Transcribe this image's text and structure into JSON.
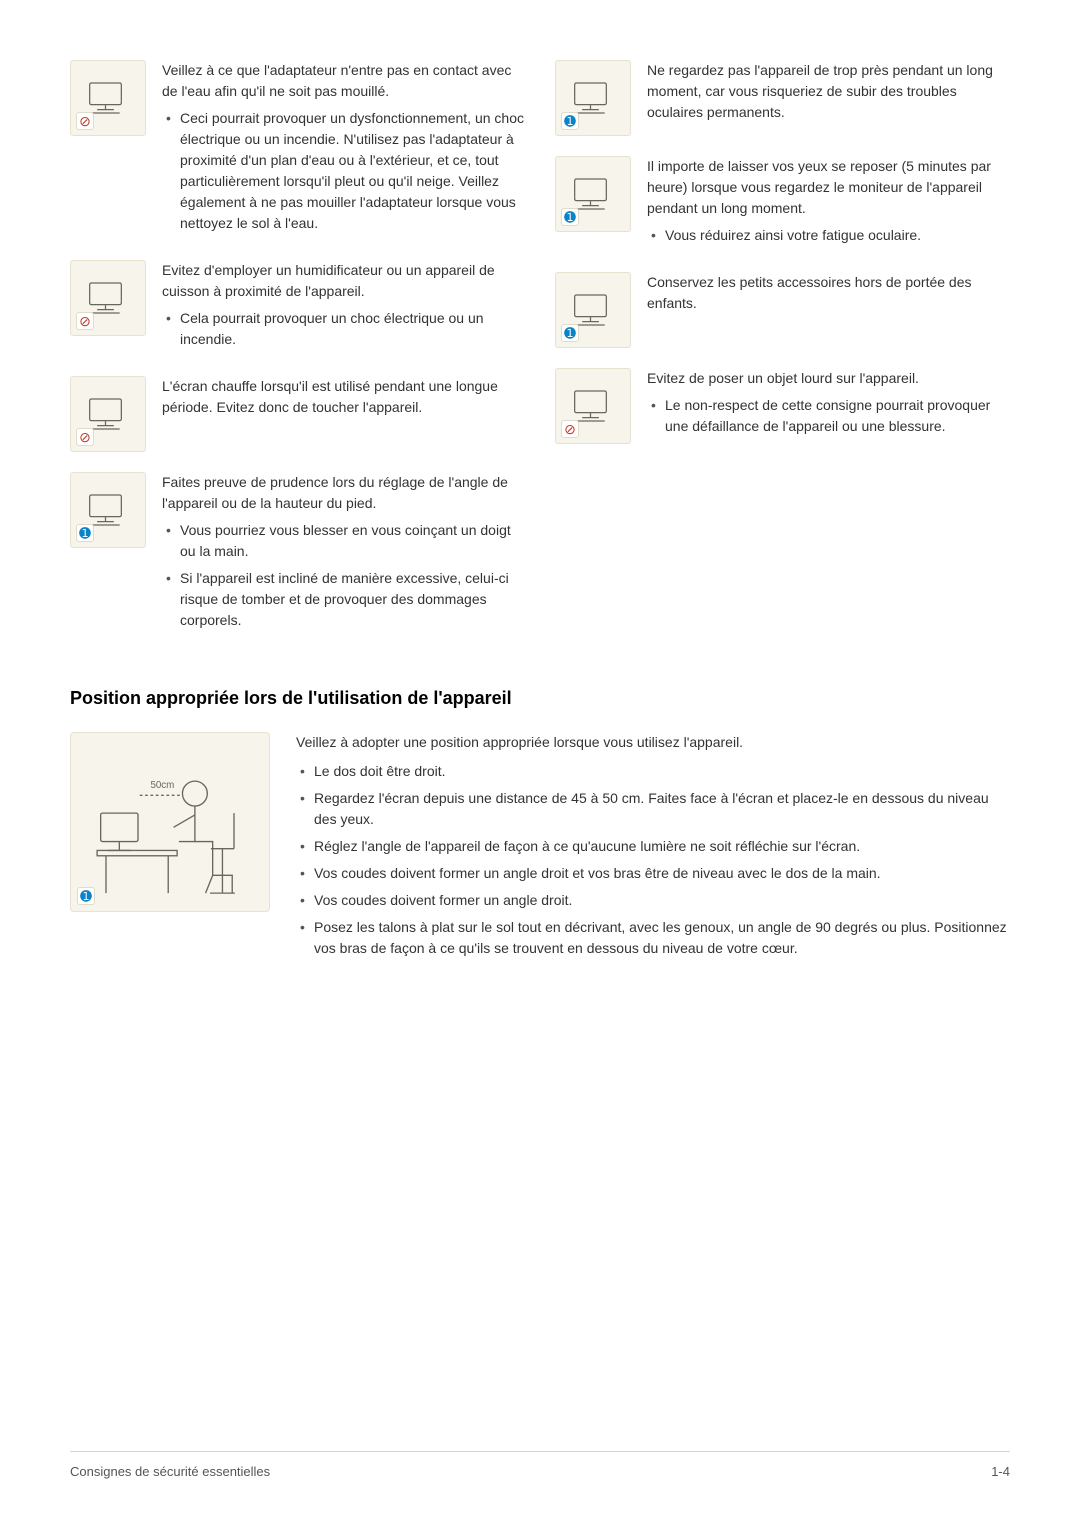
{
  "left": [
    {
      "badge": "warn",
      "text": "Veillez à ce que l'adaptateur n'entre pas en contact avec de l'eau afin qu'il ne soit pas mouillé.",
      "bullets": [
        "Ceci pourrait provoquer un dysfonctionnement, un choc électrique ou un incendie. N'utilisez pas l'adaptateur à proximité d'un plan d'eau ou à l'extérieur, et ce, tout particulièrement lorsqu'il pleut ou qu'il neige. Veillez également à ne pas mouiller l'adaptateur lorsque vous nettoyez le sol à l'eau."
      ]
    },
    {
      "badge": "warn",
      "text": "Evitez d'employer un humidificateur ou un appareil de cuisson à proximité de l'appareil.",
      "bullets": [
        "Cela pourrait provoquer un choc électrique ou un incendie."
      ]
    },
    {
      "badge": "warn",
      "text": "L'écran chauffe lorsqu'il est utilisé pendant une longue période. Evitez donc de toucher l'appareil.",
      "bullets": []
    },
    {
      "badge": "info",
      "text": "Faites preuve de prudence lors du réglage de l'angle de l'appareil ou de la hauteur du pied.",
      "bullets": [
        "Vous pourriez vous blesser en vous coinçant un doigt ou la main.",
        "Si l'appareil est incliné de manière excessive, celui-ci risque de tomber et de provoquer des dommages corporels."
      ]
    }
  ],
  "right": [
    {
      "badge": "info",
      "text": "Ne regardez pas l'appareil de trop près pendant un long moment, car vous risqueriez de subir des troubles oculaires permanents.",
      "bullets": []
    },
    {
      "badge": "info",
      "text": "Il importe de laisser vos yeux se reposer (5 minutes par heure) lorsque vous regardez le moniteur de l'appareil pendant un long moment.",
      "bullets": [
        "Vous réduirez ainsi votre fatigue oculaire."
      ]
    },
    {
      "badge": "info",
      "text": "Conservez les petits accessoires hors de portée des enfants.",
      "bullets": []
    },
    {
      "badge": "warn",
      "text": "Evitez de poser un objet lourd sur l'appareil.",
      "bullets": [
        "Le non-respect de cette consigne pourrait provoquer une défaillance de l'appareil ou une blessure."
      ]
    }
  ],
  "section_title": "Position appropriée lors de l'utilisation de l'appareil",
  "posture_intro": "Veillez à adopter une position appropriée lorsque vous utilisez l'appareil.",
  "posture_bullets": [
    "Le dos doit être droit.",
    "Regardez l'écran depuis une distance de 45 à 50 cm. Faites face à l'écran et placez-le en dessous du niveau des yeux.",
    "Réglez l'angle de l'appareil de façon à ce qu'aucune lumière ne soit réfléchie sur l'écran.",
    "Vos coudes doivent former un angle droit et vos bras être de niveau avec le dos de la main.",
    "Vos coudes doivent former un angle droit.",
    "Posez les talons à plat sur le sol tout en décrivant, avec les genoux, un angle de 90 degrés ou plus. Positionnez vos bras de façon à ce qu'ils se trouvent en dessous du niveau de votre cœur."
  ],
  "posture_label": "50cm",
  "footer_left": "Consignes de sécurité essentielles",
  "footer_right": "1-4",
  "badge_glyph": {
    "warn": "⊘",
    "info": "➊"
  },
  "colors": {
    "thumb_bg": "#f7f4ec",
    "thumb_border": "#e8e2d0",
    "warn": "#c0392b",
    "info": "#0a82c9",
    "text": "#333333",
    "rule": "#d9d4c4"
  }
}
